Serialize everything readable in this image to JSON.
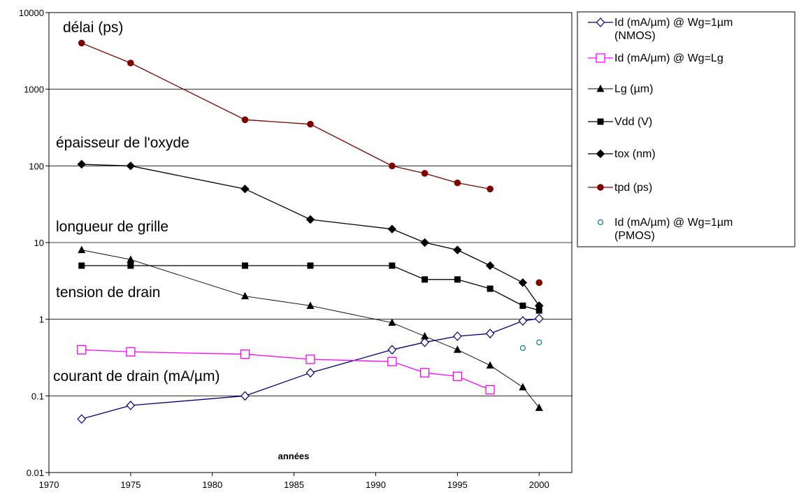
{
  "chart_data": {
    "type": "line",
    "xlabel": "années",
    "ylabel": "",
    "xlim": [
      1970,
      2002
    ],
    "ylim": [
      0.01,
      10000
    ],
    "yscale": "log",
    "x_ticks": [
      1970,
      1975,
      1980,
      1985,
      1990,
      1995,
      2000
    ],
    "y_ticks": [
      {
        "value": 0.01,
        "label": "0.01"
      },
      {
        "value": 0.1,
        "label": "0.1"
      },
      {
        "value": 1,
        "label": "1"
      },
      {
        "value": 10,
        "label": "10"
      },
      {
        "value": 100,
        "label": "100"
      },
      {
        "value": 1000,
        "label": "1000"
      },
      {
        "value": 10000,
        "label": "10000"
      }
    ],
    "grid": "horizontal",
    "legend_position": "right",
    "annotations": [
      {
        "text": "délai (ps)"
      },
      {
        "text": "épaisseur de l'oxyde"
      },
      {
        "text": "longueur de grille"
      },
      {
        "text": "tension de drain"
      },
      {
        "text": "courant de drain (mA/µm)"
      }
    ],
    "series": [
      {
        "name": "Id (mA/µm) @ Wg=1µm (NMOS)",
        "legend_lines": [
          "Id (mA/µm) @ Wg=1µm",
          "(NMOS)"
        ],
        "color": "#000080",
        "marker": "diamond-open",
        "line": true,
        "line_width": 1.3,
        "x": [
          1972,
          1975,
          1982,
          1986,
          1991,
          1993,
          1995,
          1997,
          1999,
          2000
        ],
        "values": [
          0.05,
          0.075,
          0.1,
          0.2,
          0.4,
          0.5,
          0.6,
          0.65,
          0.95,
          1.02
        ]
      },
      {
        "name": "Id (mA/µm) @ Wg=Lg",
        "legend_lines": [
          "Id (mA/µm) @ Wg=Lg"
        ],
        "color": "#ff00ff",
        "marker": "square-open",
        "line": true,
        "line_width": 1.3,
        "x": [
          1972,
          1975,
          1982,
          1986,
          1991,
          1993,
          1995,
          1997
        ],
        "values": [
          0.4,
          0.375,
          0.35,
          0.3,
          0.28,
          0.2,
          0.18,
          0.12
        ]
      },
      {
        "name": "Lg (µm)",
        "legend_lines": [
          "Lg (µm)"
        ],
        "color": "#000000",
        "marker": "triangle",
        "line": true,
        "line_width": 0.9,
        "x": [
          1972,
          1975,
          1982,
          1986,
          1991,
          1993,
          1995,
          1997,
          1999,
          2000
        ],
        "values": [
          8,
          6,
          2,
          1.5,
          0.9,
          0.6,
          0.4,
          0.25,
          0.13,
          0.07
        ]
      },
      {
        "name": "Vdd (V)",
        "legend_lines": [
          "Vdd (V)"
        ],
        "color": "#000000",
        "marker": "square",
        "line": true,
        "line_width": 1.3,
        "x": [
          1972,
          1975,
          1982,
          1986,
          1991,
          1993,
          1995,
          1997,
          1999,
          2000
        ],
        "values": [
          5,
          5,
          5,
          5,
          5,
          3.3,
          3.3,
          2.5,
          1.5,
          1.3
        ]
      },
      {
        "name": "tox (nm)",
        "legend_lines": [
          "tox (nm)"
        ],
        "color": "#000000",
        "marker": "diamond",
        "line": true,
        "line_width": 1.3,
        "x": [
          1972,
          1975,
          1982,
          1986,
          1991,
          1993,
          1995,
          1997,
          1999,
          2000
        ],
        "values": [
          105,
          100,
          50,
          20,
          15,
          10,
          8,
          5,
          3,
          1.5
        ]
      },
      {
        "name": "tpd (ps)",
        "legend_lines": [
          "tpd (ps)"
        ],
        "color": "#800000",
        "marker": "circle",
        "line": true,
        "line_width": 1.3,
        "x": [
          1972,
          1975,
          1982,
          1986,
          1991,
          1993,
          1995,
          1997
        ],
        "values": [
          4000,
          2200,
          400,
          350,
          100,
          80,
          60,
          50
        ],
        "extra_points": [
          {
            "x": 2000,
            "y": 3
          }
        ]
      },
      {
        "name": "Id (mA/µm) @ Wg=1µm (PMOS)",
        "legend_lines": [
          "Id (mA/µm) @ Wg=1µm",
          "(PMOS)"
        ],
        "color": "#008080",
        "marker": "circle-open",
        "line": false,
        "line_width": 0,
        "x": [
          1999,
          2000
        ],
        "values": [
          0.42,
          0.5
        ]
      }
    ]
  }
}
